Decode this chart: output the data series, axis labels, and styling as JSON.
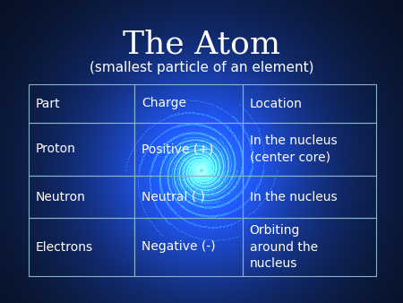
{
  "title": "The Atom",
  "subtitle": "(smallest particle of an element)",
  "title_color": "#ffffff",
  "subtitle_color": "#ffffff",
  "title_fontsize": 26,
  "subtitle_fontsize": 11,
  "bg_color": "#060d1a",
  "table_data": [
    [
      "Part",
      "Charge",
      "Location"
    ],
    [
      "Proton",
      "Positive (+)",
      "In the nucleus\n(center core)"
    ],
    [
      "Neutron",
      "Neutral ( )",
      "In the nucleus"
    ],
    [
      "Electrons",
      "Negative (-)",
      "Orbiting\naround the\nnucleus"
    ]
  ],
  "text_color": "#ffffff",
  "table_fontsize": 10,
  "grid_color": "#8ab4cc",
  "fig_width": 4.5,
  "fig_height": 3.38
}
